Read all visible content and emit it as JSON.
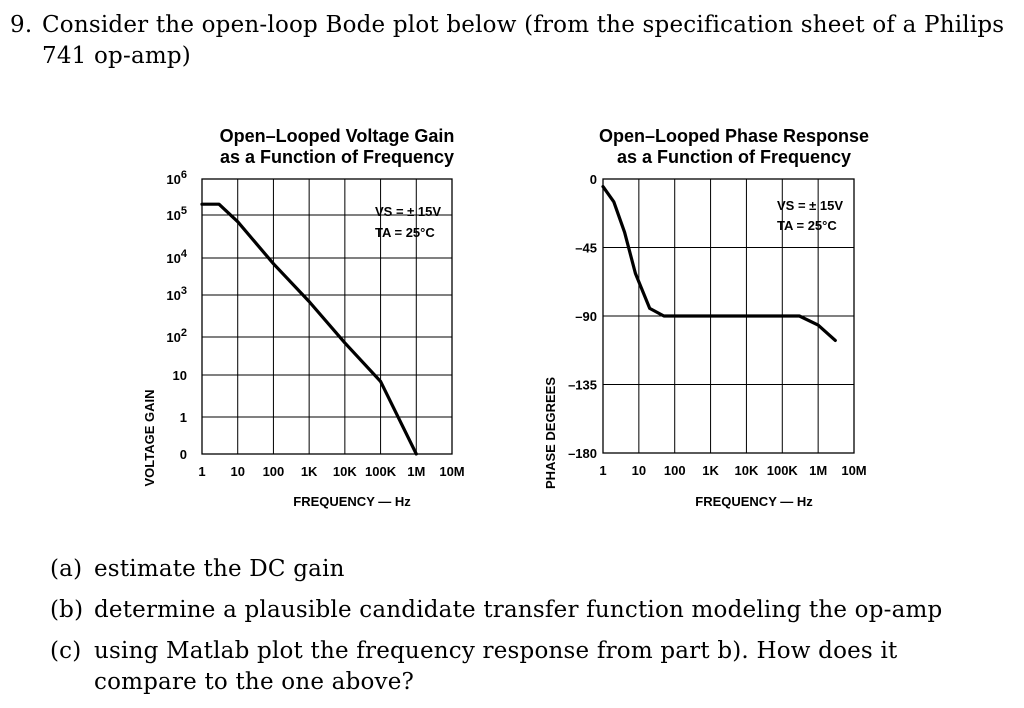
{
  "question": {
    "number": "9.",
    "text": "Consider the open-loop Bode plot below (from the specification sheet of a Philips 741 op-amp)"
  },
  "parts": [
    {
      "label": "(a)",
      "text": "estimate the DC gain"
    },
    {
      "label": "(b)",
      "text": "determine a plausible candidate transfer function modeling the op-amp"
    },
    {
      "label": "(c)",
      "text": "using Matlab plot the frequency response from part b). How does it compare to the one above?"
    }
  ],
  "chart_data": [
    {
      "type": "line",
      "title": "Open–Looped Voltage Gain",
      "subtitle": "as a Function of Frequency",
      "xlabel": "FREQUENCY — Hz",
      "ylabel": "VOLTAGE GAIN",
      "x_scale": "log",
      "y_scale": "log",
      "x_ticks": [
        "1",
        "10",
        "100",
        "1K",
        "10K",
        "100K",
        "1M",
        "10M"
      ],
      "y_ticks": [
        "0",
        "1",
        "10",
        "10^2",
        "10^3",
        "10^4",
        "10^5",
        "10^6"
      ],
      "annotation": [
        "VS = ± 15V",
        "TA = 25°C"
      ],
      "series": [
        {
          "x": [
            1,
            3,
            10,
            100,
            1000,
            10000,
            100000,
            1000000
          ],
          "y": [
            200000,
            200000,
            70000,
            7000,
            700,
            70,
            7,
            0.7
          ]
        }
      ]
    },
    {
      "type": "line",
      "title": "Open–Looped Phase Response",
      "subtitle": "as a Function of Frequency",
      "xlabel": "FREQUENCY — Hz",
      "ylabel": "PHASE DEGREES",
      "x_scale": "log",
      "x_ticks": [
        "1",
        "10",
        "100",
        "1K",
        "10K",
        "100K",
        "1M",
        "10M"
      ],
      "y_ticks": [
        "0",
        "–45",
        "–90",
        "–135",
        "–180"
      ],
      "annotation": [
        "VS = ± 15V",
        "TA = 25°C"
      ],
      "series": [
        {
          "x": [
            1,
            2,
            4,
            8,
            20,
            50,
            100,
            1000,
            10000,
            100000,
            300000,
            1000000,
            3000000
          ],
          "y": [
            -5,
            -15,
            -35,
            -62,
            -85,
            -90,
            -90,
            -90,
            -90,
            -90,
            -90,
            -96,
            -106
          ]
        }
      ]
    }
  ]
}
